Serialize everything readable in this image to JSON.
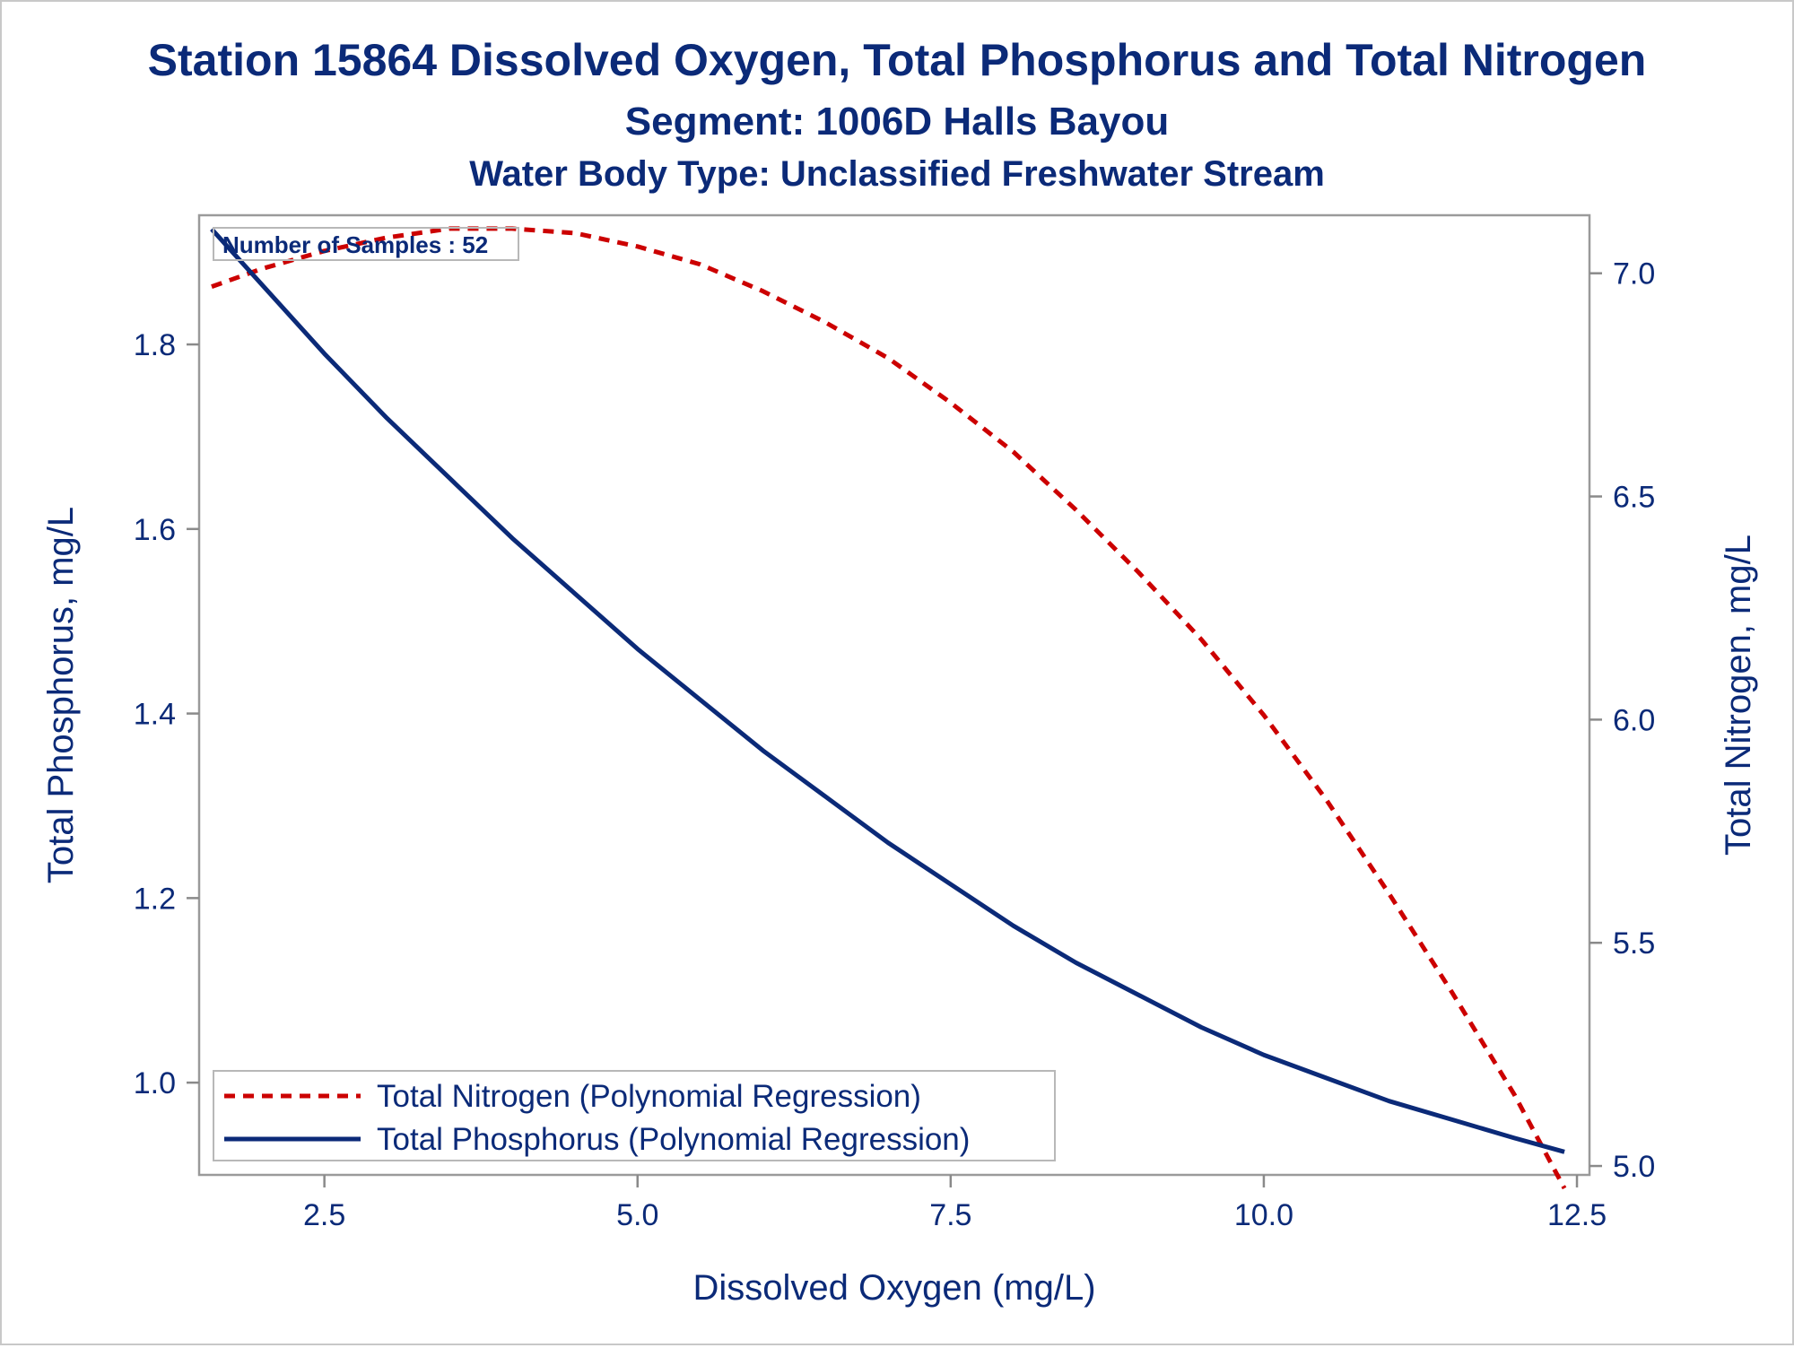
{
  "chart_data": {
    "type": "line",
    "title": "Station 15864  Dissolved Oxygen, Total Phosphorus and Total Nitrogen",
    "subtitle": "Segment: 1006D  Halls Bayou",
    "subtitle2": "Water Body Type: Unclassified Freshwater Stream",
    "xlabel": "Dissolved Oxygen (mg/L)",
    "ylabel": "Total Phosphorus, mg/L",
    "y2label": "Total Nitrogen, mg/L",
    "annotation": "Number of Samples : 52",
    "xlim": [
      1.5,
      12.6
    ],
    "ylim": [
      0.9,
      1.94
    ],
    "y2lim": [
      4.98,
      7.13
    ],
    "xticks": [
      2.5,
      5.0,
      7.5,
      10.0,
      12.5
    ],
    "xtick_labels": [
      "2.5",
      "5.0",
      "7.5",
      "10.0",
      "12.5"
    ],
    "yticks": [
      1.0,
      1.2,
      1.4,
      1.6,
      1.8
    ],
    "ytick_labels": [
      "1.0",
      "1.2",
      "1.4",
      "1.6",
      "1.8"
    ],
    "y2ticks": [
      5.0,
      5.5,
      6.0,
      6.5,
      7.0
    ],
    "y2tick_labels": [
      "5.0",
      "5.5",
      "6.0",
      "6.5",
      "7.0"
    ],
    "grid": false,
    "legend_position": "bottom-left",
    "series": [
      {
        "name": "Total Nitrogen (Polynomial Regression)",
        "axis": "right",
        "color": "#cc0000",
        "style": "dashed",
        "x": [
          1.6,
          2.0,
          2.5,
          3.0,
          3.5,
          4.0,
          4.5,
          5.0,
          5.5,
          6.0,
          6.5,
          7.0,
          7.5,
          8.0,
          8.5,
          9.0,
          9.5,
          10.0,
          10.5,
          11.0,
          11.5,
          12.0,
          12.4
        ],
        "y": [
          6.97,
          7.01,
          7.05,
          7.08,
          7.1,
          7.1,
          7.09,
          7.06,
          7.02,
          6.96,
          6.89,
          6.81,
          6.71,
          6.6,
          6.47,
          6.33,
          6.18,
          6.01,
          5.82,
          5.61,
          5.39,
          5.16,
          4.95
        ]
      },
      {
        "name": "Total Phosphorus (Polynomial Regression)",
        "axis": "left",
        "color": "#0b2a78",
        "style": "solid",
        "x": [
          1.6,
          2.0,
          2.5,
          3.0,
          3.5,
          4.0,
          4.5,
          5.0,
          5.5,
          6.0,
          6.5,
          7.0,
          7.5,
          8.0,
          8.5,
          9.0,
          9.5,
          10.0,
          10.5,
          11.0,
          11.5,
          12.0,
          12.4
        ],
        "y": [
          1.925,
          1.865,
          1.79,
          1.72,
          1.655,
          1.59,
          1.53,
          1.47,
          1.415,
          1.36,
          1.31,
          1.26,
          1.215,
          1.17,
          1.13,
          1.095,
          1.06,
          1.03,
          1.005,
          0.98,
          0.96,
          0.94,
          0.925
        ]
      }
    ]
  }
}
